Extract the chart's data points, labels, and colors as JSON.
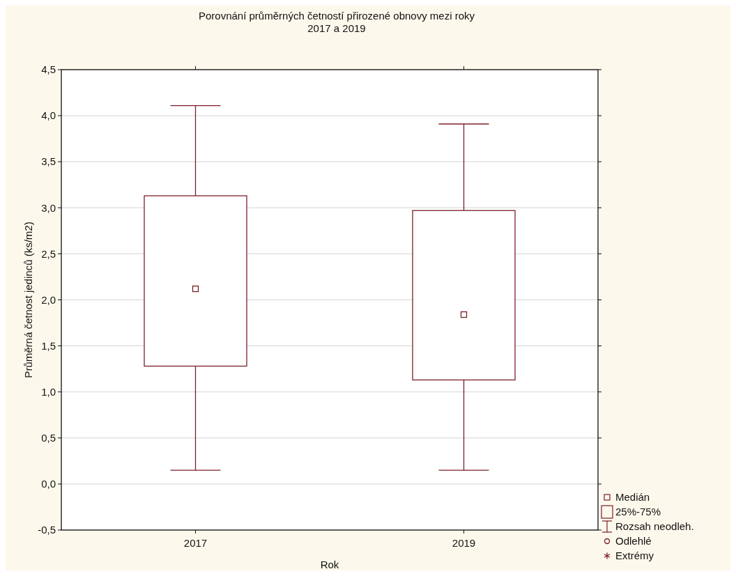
{
  "chart_data": {
    "type": "box",
    "title": "Porovnání průměrných četností přirozené obnovy mezi roky\n2017 a 2019",
    "xlabel": "Rok",
    "ylabel": "Průměrná četnost jedinců (ks/m2)",
    "categories": [
      "2017",
      "2019"
    ],
    "series": [
      {
        "color": "#7b1f2a",
        "boxes": [
          {
            "low": 0.15,
            "q1": 1.28,
            "median": 2.12,
            "q3": 3.13,
            "high": 4.11
          },
          {
            "low": 0.15,
            "q1": 1.13,
            "median": 1.84,
            "q3": 2.97,
            "high": 3.91
          }
        ]
      }
    ],
    "ylim": [
      -0.5,
      4.5
    ],
    "yticks": [
      {
        "value": -0.5,
        "label": "-0,5"
      },
      {
        "value": 0,
        "label": "0,0"
      },
      {
        "value": 0.5,
        "label": "0,5"
      },
      {
        "value": 1,
        "label": "1,0"
      },
      {
        "value": 1.5,
        "label": "1,5"
      },
      {
        "value": 2,
        "label": "2,0"
      },
      {
        "value": 2.5,
        "label": "2,5"
      },
      {
        "value": 3,
        "label": "3,0"
      },
      {
        "value": 3.5,
        "label": "3,5"
      },
      {
        "value": 4,
        "label": "4,0"
      },
      {
        "value": 4.5,
        "label": "4,5"
      }
    ],
    "grid": "y",
    "marker": "square",
    "annotations": [
      "Medián",
      "25%-75%",
      "Rozsah neodleh.",
      "Odlehlé",
      "Extrémy"
    ]
  }
}
